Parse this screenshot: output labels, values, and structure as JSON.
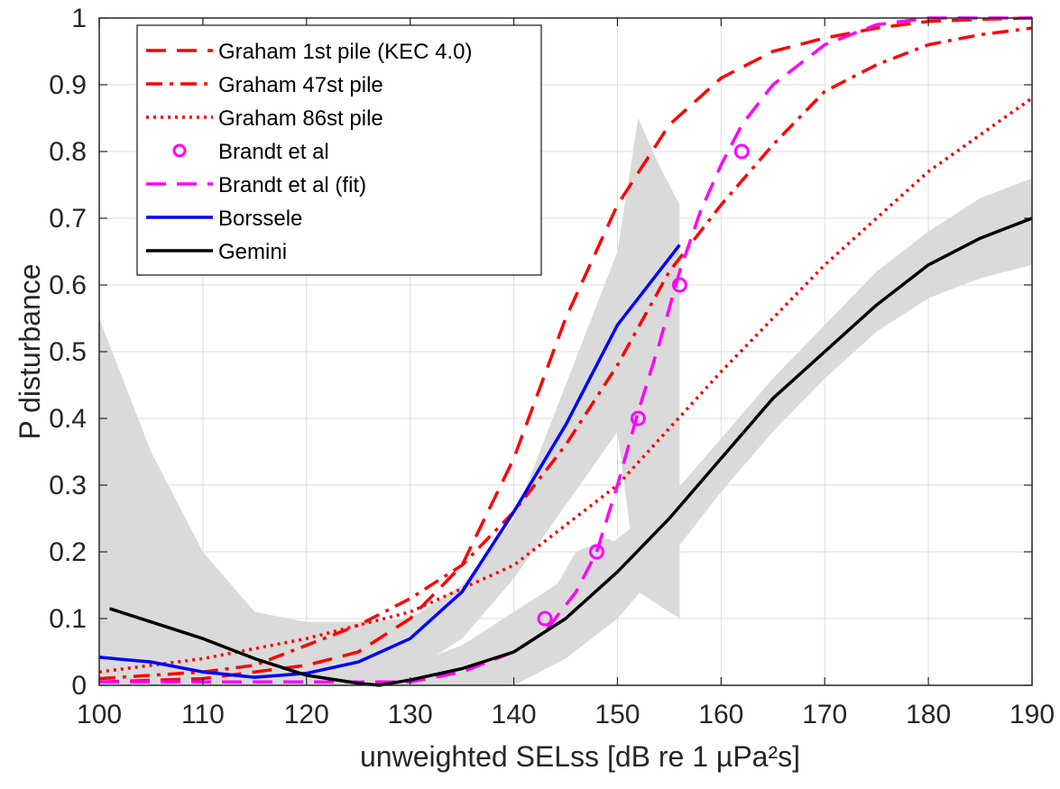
{
  "chart_data": {
    "type": "line",
    "xlabel": "unweighted SELss [dB re 1 µPa²s]",
    "ylabel": "P disturbance",
    "xlim": [
      100,
      190
    ],
    "ylim": [
      0,
      1
    ],
    "xticks": [
      100,
      110,
      120,
      130,
      140,
      150,
      160,
      170,
      180,
      190
    ],
    "yticks": [
      0,
      0.1,
      0.2,
      0.3,
      0.4,
      0.5,
      0.6,
      0.7,
      0.8,
      0.9,
      1
    ],
    "xtick_labels": [
      "100",
      "110",
      "120",
      "130",
      "140",
      "150",
      "160",
      "170",
      "180",
      "190"
    ],
    "ytick_labels": [
      "0",
      "0.1",
      "0.2",
      "0.3",
      "0.4",
      "0.5",
      "0.6",
      "0.7",
      "0.8",
      "0.9",
      "1"
    ],
    "grid": true,
    "legend_position": "top-left",
    "series": [
      {
        "name": "Graham 1st pile (KEC 4.0)",
        "color": "#ff0000",
        "style": "dashed",
        "x": [
          100,
          110,
          120,
          125,
          130,
          135,
          140,
          145,
          150,
          155,
          160,
          165,
          170,
          175,
          180,
          185,
          190
        ],
        "y": [
          0.005,
          0.01,
          0.03,
          0.05,
          0.1,
          0.18,
          0.34,
          0.55,
          0.72,
          0.84,
          0.91,
          0.95,
          0.97,
          0.985,
          0.995,
          0.998,
          1.0
        ]
      },
      {
        "name": "Graham 47st pile",
        "color": "#ff0000",
        "style": "dashdot",
        "x": [
          100,
          110,
          115,
          120,
          125,
          130,
          135,
          140,
          145,
          150,
          155,
          160,
          165,
          170,
          175,
          180,
          185,
          190
        ],
        "y": [
          0.01,
          0.02,
          0.03,
          0.06,
          0.09,
          0.13,
          0.18,
          0.26,
          0.36,
          0.48,
          0.62,
          0.72,
          0.81,
          0.89,
          0.93,
          0.96,
          0.975,
          0.985
        ]
      },
      {
        "name": "Graham 86st pile",
        "color": "#ff0000",
        "style": "dotted",
        "x": [
          100,
          110,
          120,
          130,
          140,
          150,
          160,
          170,
          180,
          190
        ],
        "y": [
          0.02,
          0.04,
          0.07,
          0.11,
          0.18,
          0.3,
          0.47,
          0.63,
          0.77,
          0.88
        ]
      },
      {
        "name": "Brandt et al",
        "color": "#ff00ff",
        "style": "markers",
        "x": [
          143,
          148,
          152,
          156,
          162
        ],
        "y": [
          0.1,
          0.2,
          0.4,
          0.6,
          0.8
        ]
      },
      {
        "name": "Brandt et al (fit)",
        "color": "#ff00ff",
        "style": "dashed",
        "x": [
          100,
          110,
          120,
          130,
          135,
          140,
          143,
          146,
          148,
          150,
          152,
          154,
          156,
          158,
          160,
          162,
          165,
          170,
          175,
          180,
          190
        ],
        "y": [
          0.005,
          0.005,
          0.005,
          0.005,
          0.02,
          0.05,
          0.08,
          0.14,
          0.2,
          0.3,
          0.41,
          0.51,
          0.62,
          0.71,
          0.78,
          0.84,
          0.9,
          0.96,
          0.99,
          1.0,
          1.0
        ]
      },
      {
        "name": "Borssele",
        "color": "#0000ff",
        "style": "solid",
        "x": [
          100,
          105,
          110,
          115,
          120,
          125,
          130,
          135,
          140,
          145,
          150,
          155,
          156
        ],
        "y": [
          0.042,
          0.035,
          0.02,
          0.012,
          0.018,
          0.035,
          0.07,
          0.14,
          0.26,
          0.39,
          0.54,
          0.64,
          0.66
        ]
      },
      {
        "name": "Gemini",
        "color": "#000000",
        "style": "solid",
        "x": [
          101,
          105,
          110,
          115,
          120,
          125,
          127,
          130,
          135,
          140,
          145,
          150,
          155,
          160,
          165,
          170,
          175,
          180,
          185,
          190
        ],
        "y": [
          0.115,
          0.095,
          0.07,
          0.04,
          0.015,
          0.003,
          0.0,
          0.008,
          0.025,
          0.05,
          0.1,
          0.17,
          0.25,
          0.34,
          0.43,
          0.5,
          0.57,
          0.63,
          0.67,
          0.7
        ]
      }
    ],
    "confidence_bands": [
      {
        "color": "#dadada",
        "x": [
          100,
          105,
          110,
          115,
          120,
          125,
          130,
          135,
          140,
          145,
          150,
          152,
          154,
          156
        ],
        "upper": [
          0.55,
          0.35,
          0.2,
          0.11,
          0.095,
          0.095,
          0.1,
          0.15,
          0.25,
          0.45,
          0.65,
          0.85,
          0.78,
          0.72
        ],
        "lower": [
          0.0,
          0.0,
          0.0,
          0.0,
          0.0,
          0.0,
          0.02,
          0.07,
          0.16,
          0.27,
          0.38,
          0.14,
          0.12,
          0.1
        ]
      },
      {
        "color": "#dadada",
        "x": [
          100,
          105,
          110,
          115,
          120,
          125,
          130,
          135,
          140,
          145,
          150,
          155,
          160,
          165,
          170,
          175,
          180,
          185,
          190
        ],
        "upper": [
          0.17,
          0.14,
          0.1,
          0.07,
          0.04,
          0.02,
          0.03,
          0.06,
          0.11,
          0.16,
          0.22,
          0.28,
          0.37,
          0.46,
          0.54,
          0.62,
          0.68,
          0.73,
          0.76
        ],
        "lower": [
          0.07,
          0.05,
          0.03,
          0.01,
          0.0,
          0.0,
          0.0,
          0.0,
          0.0,
          0.04,
          0.1,
          0.19,
          0.29,
          0.38,
          0.46,
          0.53,
          0.58,
          0.61,
          0.63
        ]
      },
      {
        "color": "#dadada",
        "x": [
          143,
          146,
          149,
          152
        ],
        "upper": [
          0.12,
          0.2,
          0.22,
          0.2
        ],
        "lower": [
          0.08,
          0.1,
          0.12,
          0.14
        ]
      }
    ]
  }
}
